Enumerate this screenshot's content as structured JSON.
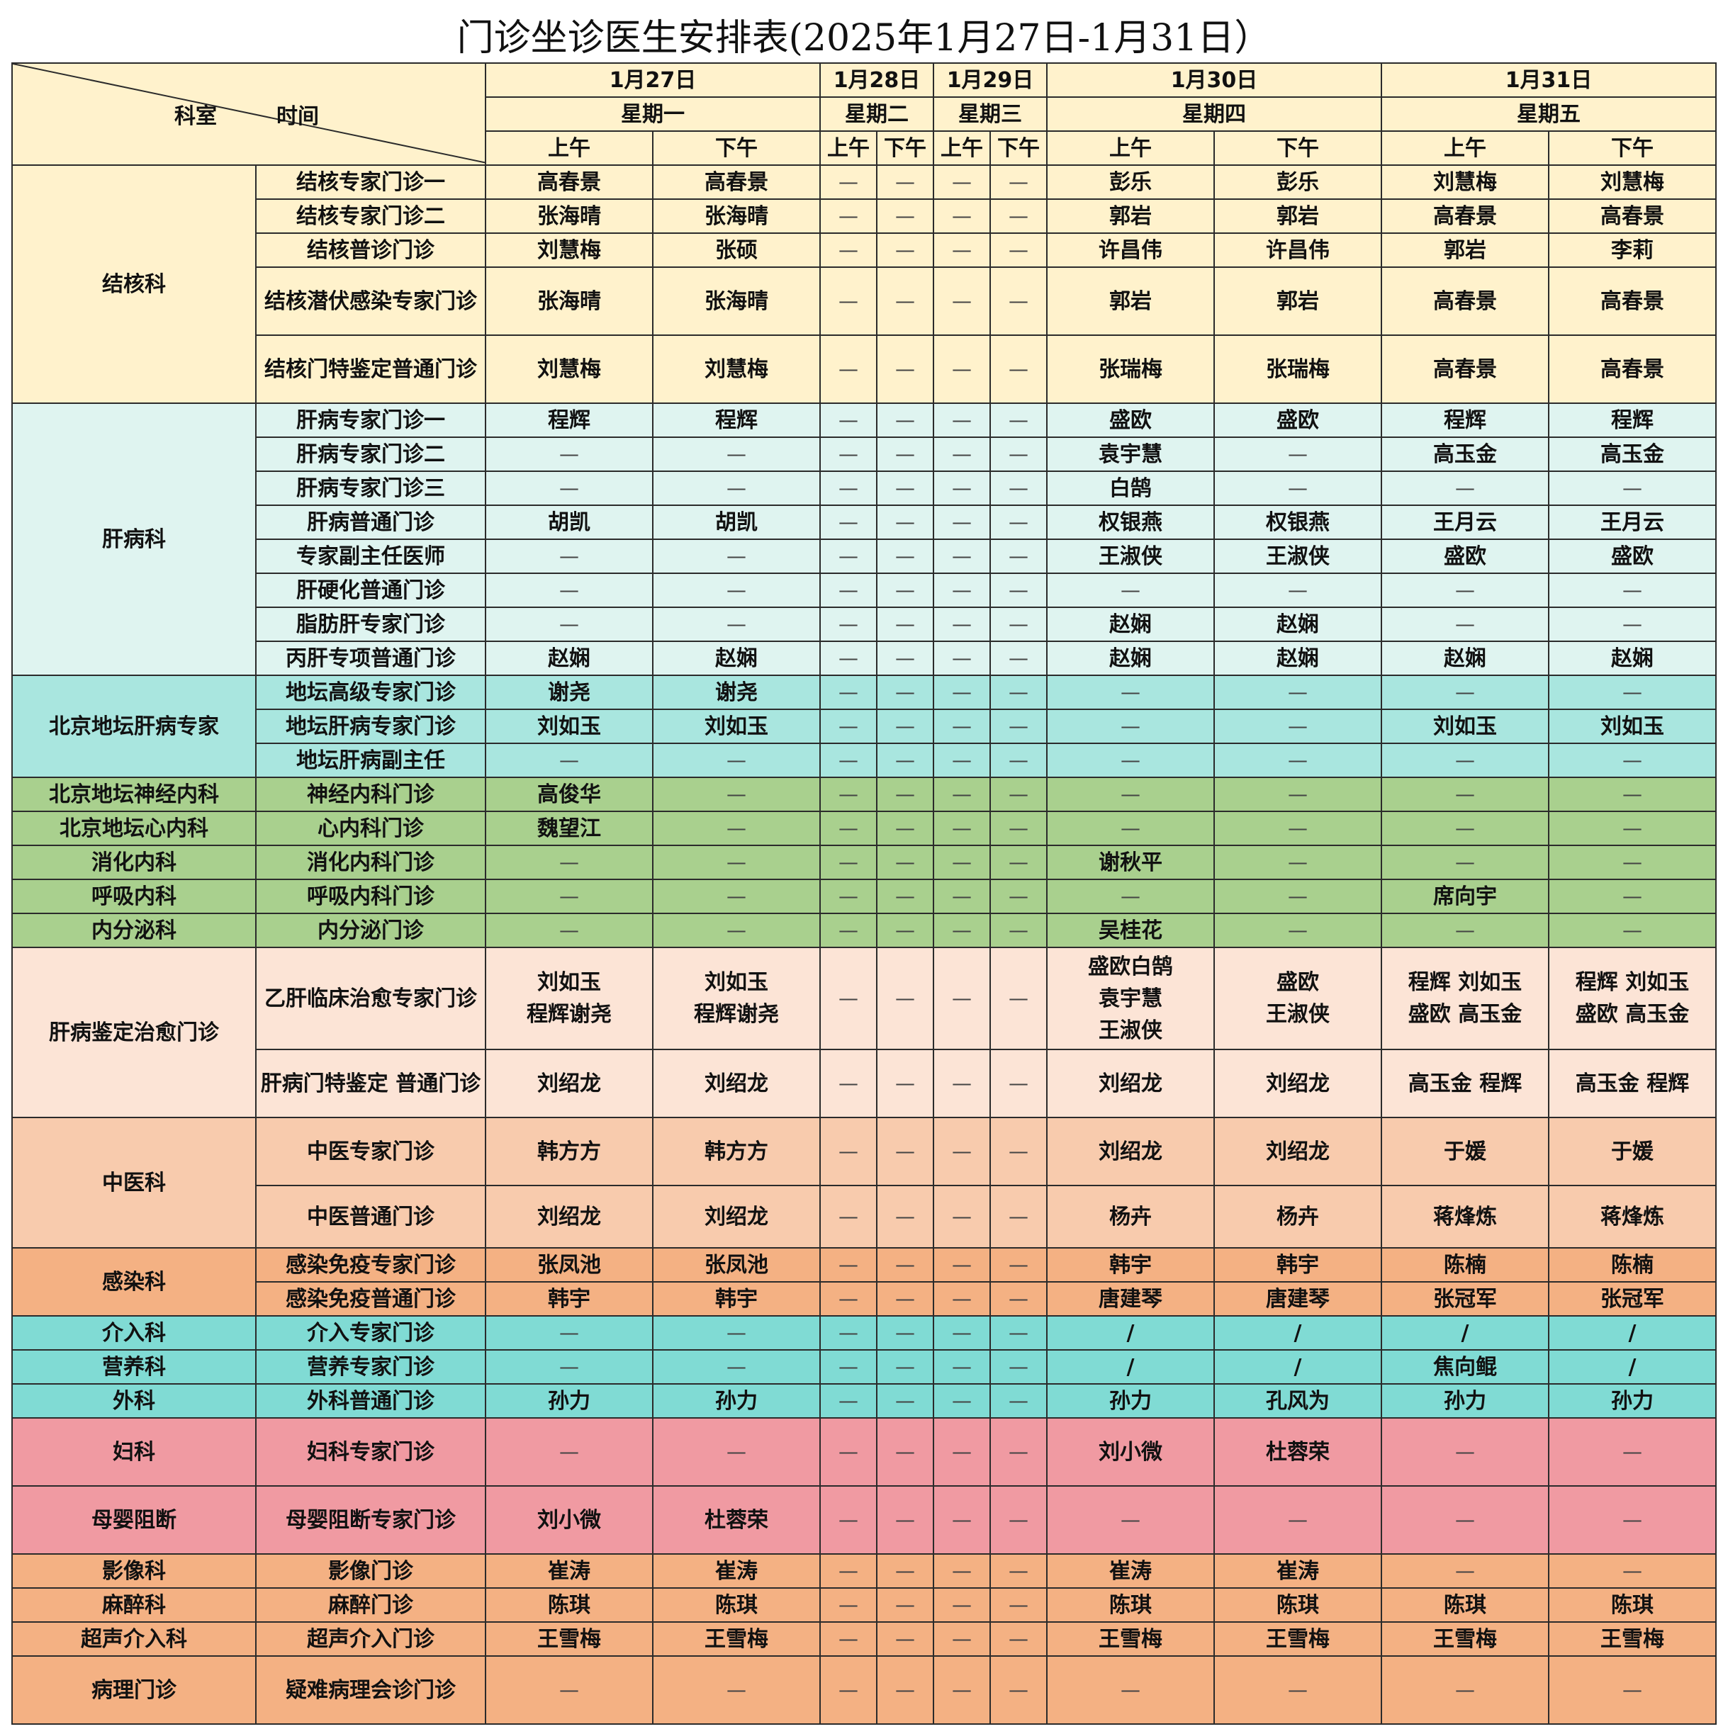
{
  "title": "门诊坐诊医生安排表(2025年1月27日-1月31日）",
  "header": {
    "corner_dept": "科室",
    "corner_time": "时间",
    "dates": [
      "1月27日",
      "1月28日",
      "1月29日",
      "1月30日",
      "1月31日"
    ],
    "weekdays": [
      "星期一",
      "星期二",
      "星期三",
      "星期四",
      "星期五"
    ],
    "am": "上午",
    "pm": "下午"
  },
  "dash": "—",
  "groups": [
    {
      "dept": "结核科",
      "theme": "g-tb",
      "rows": [
        {
          "clinic": "结核专家门诊一",
          "slots": [
            "高春景",
            "高春景",
            "—",
            "—",
            "—",
            "—",
            "彭乐",
            "彭乐",
            "刘慧梅",
            "刘慧梅"
          ]
        },
        {
          "clinic": "结核专家门诊二",
          "slots": [
            "张海晴",
            "张海晴",
            "—",
            "—",
            "—",
            "—",
            "郭岩",
            "郭岩",
            "高春景",
            "高春景"
          ]
        },
        {
          "clinic": "结核普诊门诊",
          "slots": [
            "刘慧梅",
            "张硕",
            "—",
            "—",
            "—",
            "—",
            "许昌伟",
            "许昌伟",
            "郭岩",
            "李莉"
          ]
        },
        {
          "clinic": "结核潜伏感染专家门诊",
          "tall": true,
          "slots": [
            "张海晴",
            "张海晴",
            "—",
            "—",
            "—",
            "—",
            "郭岩",
            "郭岩",
            "高春景",
            "高春景"
          ]
        },
        {
          "clinic": "结核门特鉴定普通门诊",
          "tall": true,
          "slots": [
            "刘慧梅",
            "刘慧梅",
            "—",
            "—",
            "—",
            "—",
            "张瑞梅",
            "张瑞梅",
            "高春景",
            "高春景"
          ]
        }
      ]
    },
    {
      "dept": "肝病科",
      "theme": "g-liver",
      "rows": [
        {
          "clinic": "肝病专家门诊一",
          "slots": [
            "程辉",
            "程辉",
            "—",
            "—",
            "—",
            "—",
            "盛欧",
            "盛欧",
            "程辉",
            "程辉"
          ]
        },
        {
          "clinic": "肝病专家门诊二",
          "slots": [
            "—",
            "—",
            "—",
            "—",
            "—",
            "—",
            "袁宇慧",
            "—",
            "高玉金",
            "高玉金"
          ]
        },
        {
          "clinic": "肝病专家门诊三",
          "slots": [
            "—",
            "—",
            "—",
            "—",
            "—",
            "—",
            "白鹄",
            "—",
            "—",
            "—"
          ]
        },
        {
          "clinic": "肝病普通门诊",
          "slots": [
            "胡凯",
            "胡凯",
            "—",
            "—",
            "—",
            "—",
            "权银燕",
            "权银燕",
            "王月云",
            "王月云"
          ]
        },
        {
          "clinic": "专家副主任医师",
          "slots": [
            "—",
            "—",
            "—",
            "—",
            "—",
            "—",
            "王淑侠",
            "王淑侠",
            "盛欧",
            "盛欧"
          ]
        },
        {
          "clinic": "肝硬化普通门诊",
          "slots": [
            "—",
            "—",
            "—",
            "—",
            "—",
            "—",
            "—",
            "—",
            "—",
            "—"
          ]
        },
        {
          "clinic": "脂肪肝专家门诊",
          "slots": [
            "—",
            "—",
            "—",
            "—",
            "—",
            "—",
            "赵娴",
            "赵娴",
            "—",
            "—"
          ]
        },
        {
          "clinic": "丙肝专项普通门诊",
          "slots": [
            "赵娴",
            "赵娴",
            "—",
            "—",
            "—",
            "—",
            "赵娴",
            "赵娴",
            "赵娴",
            "赵娴"
          ]
        }
      ]
    },
    {
      "dept": "北京地坛肝病专家",
      "theme": "g-ditan",
      "rows": [
        {
          "clinic": "地坛高级专家门诊",
          "slots": [
            "谢尧",
            "谢尧",
            "—",
            "—",
            "—",
            "—",
            "—",
            "—",
            "—",
            "—"
          ]
        },
        {
          "clinic": "地坛肝病专家门诊",
          "slots": [
            "刘如玉",
            "刘如玉",
            "—",
            "—",
            "—",
            "—",
            "—",
            "—",
            "刘如玉",
            "刘如玉"
          ]
        },
        {
          "clinic": "地坛肝病副主任",
          "slots": [
            "—",
            "—",
            "—",
            "—",
            "—",
            "—",
            "—",
            "—",
            "—",
            "—"
          ]
        }
      ]
    },
    {
      "dept": "北京地坛神经内科",
      "theme": "g-green",
      "rows": [
        {
          "clinic": "神经内科门诊",
          "slots": [
            "高俊华",
            "—",
            "—",
            "—",
            "—",
            "—",
            "—",
            "—",
            "—",
            "—"
          ]
        }
      ]
    },
    {
      "dept": "北京地坛心内科",
      "theme": "g-green",
      "rows": [
        {
          "clinic": "心内科门诊",
          "slots": [
            "魏望江",
            "—",
            "—",
            "—",
            "—",
            "—",
            "—",
            "—",
            "—",
            "—"
          ]
        }
      ]
    },
    {
      "dept": "消化内科",
      "theme": "g-green",
      "rows": [
        {
          "clinic": "消化内科门诊",
          "slots": [
            "—",
            "—",
            "—",
            "—",
            "—",
            "—",
            "谢秋平",
            "—",
            "—",
            "—"
          ]
        }
      ]
    },
    {
      "dept": "呼吸内科",
      "theme": "g-green",
      "rows": [
        {
          "clinic": "呼吸内科门诊",
          "slots": [
            "—",
            "—",
            "—",
            "—",
            "—",
            "—",
            "—",
            "—",
            "席向宇",
            "—"
          ]
        }
      ]
    },
    {
      "dept": "内分泌科",
      "theme": "g-green",
      "rows": [
        {
          "clinic": "内分泌门诊",
          "slots": [
            "—",
            "—",
            "—",
            "—",
            "—",
            "—",
            "吴桂花",
            "—",
            "—",
            "—"
          ]
        }
      ]
    },
    {
      "dept": "肝病鉴定治愈门诊",
      "theme": "g-peach",
      "rows": [
        {
          "clinic": "乙肝临床治愈专家门诊",
          "h": 144,
          "slots": [
            "刘如玉\n程辉谢尧",
            "刘如玉\n程辉谢尧",
            "—",
            "—",
            "—",
            "—",
            "盛欧白鹄\n袁宇慧\n王淑侠",
            "盛欧\n王淑侠",
            "程辉 刘如玉\n盛欧 高玉金",
            "程辉 刘如玉\n盛欧 高玉金"
          ]
        },
        {
          "clinic": "肝病门特鉴定 普通门诊",
          "tall": true,
          "slots": [
            "刘绍龙",
            "刘绍龙",
            "—",
            "—",
            "—",
            "—",
            "刘绍龙",
            "刘绍龙",
            "高玉金 程辉",
            "高玉金  程辉"
          ]
        }
      ]
    },
    {
      "dept": "中医科",
      "theme": "g-tcm",
      "rows": [
        {
          "clinic": "中医专家门诊",
          "tall": true,
          "slots": [
            "韩方方",
            "韩方方",
            "—",
            "—",
            "—",
            "—",
            "刘绍龙",
            "刘绍龙",
            "于媛",
            "于媛"
          ]
        },
        {
          "clinic": "中医普通门诊",
          "h": 88,
          "slots": [
            "刘绍龙",
            "刘绍龙",
            "—",
            "—",
            "—",
            "—",
            "杨卉",
            "杨卉",
            "蒋烽炼",
            "蒋烽炼"
          ]
        }
      ]
    },
    {
      "dept": "感染科",
      "theme": "g-orange",
      "rows": [
        {
          "clinic": "感染免疫专家门诊",
          "slots": [
            "张凤池",
            "张凤池",
            "—",
            "—",
            "—",
            "—",
            "韩宇",
            "韩宇",
            "陈楠",
            "陈楠"
          ]
        },
        {
          "clinic": "感染免疫普通门诊",
          "slots": [
            "韩宇",
            "韩宇",
            "—",
            "—",
            "—",
            "—",
            "唐建琴",
            "唐建琴",
            "张冠军",
            "张冠军"
          ]
        }
      ]
    },
    {
      "dept": "介入科",
      "theme": "g-teal",
      "rows": [
        {
          "clinic": "介入专家门诊",
          "slots": [
            "—",
            "—",
            "—",
            "—",
            "—",
            "—",
            "/",
            "/",
            "/",
            "/"
          ]
        }
      ]
    },
    {
      "dept": "营养科",
      "theme": "g-teal",
      "rows": [
        {
          "clinic": "营养专家门诊",
          "slots": [
            "—",
            "—",
            "—",
            "—",
            "—",
            "—",
            "/",
            "/",
            "焦向鲲",
            "/"
          ]
        }
      ]
    },
    {
      "dept": "外科",
      "theme": "g-teal",
      "rows": [
        {
          "clinic": "外科普通门诊",
          "slots": [
            "孙力",
            "孙力",
            "—",
            "—",
            "—",
            "—",
            "孙力",
            "孔风为",
            "孙力",
            "孙力"
          ]
        }
      ]
    },
    {
      "dept": "妇科",
      "theme": "g-pink",
      "rows": [
        {
          "clinic": "妇科专家门诊",
          "tall": true,
          "slots": [
            "—",
            "—",
            "—",
            "—",
            "—",
            "—",
            "刘小微",
            "杜蓉荣",
            "—",
            "—"
          ]
        }
      ]
    },
    {
      "dept": "母婴阻断",
      "theme": "g-pink",
      "rows": [
        {
          "clinic": "母婴阻断专家门诊",
          "tall": true,
          "slots": [
            "刘小微",
            "杜蓉荣",
            "—",
            "—",
            "—",
            "—",
            "—",
            "—",
            "—",
            "—"
          ]
        }
      ]
    },
    {
      "dept": "影像科",
      "theme": "g-orange",
      "rows": [
        {
          "clinic": "影像门诊",
          "slots": [
            "崔涛",
            "崔涛",
            "—",
            "—",
            "—",
            "—",
            "崔涛",
            "崔涛",
            "—",
            "—"
          ]
        }
      ]
    },
    {
      "dept": "麻醉科",
      "theme": "g-orange",
      "rows": [
        {
          "clinic": "麻醉门诊",
          "slots": [
            "陈琪",
            "陈琪",
            "—",
            "—",
            "—",
            "—",
            "陈琪",
            "陈琪",
            "陈琪",
            "陈琪"
          ]
        }
      ]
    },
    {
      "dept": "超声介入科",
      "theme": "g-orange",
      "rows": [
        {
          "clinic": "超声介入门诊",
          "slots": [
            "王雪梅",
            "王雪梅",
            "—",
            "—",
            "—",
            "—",
            "王雪梅",
            "王雪梅",
            "王雪梅",
            "王雪梅"
          ]
        }
      ]
    },
    {
      "dept": "病理门诊",
      "theme": "g-orange",
      "rows": [
        {
          "clinic": "疑难病理会诊门诊",
          "tall": true,
          "slots": [
            "—",
            "—",
            "—",
            "—",
            "—",
            "—",
            "—",
            "—",
            "—",
            "—"
          ]
        }
      ]
    }
  ]
}
